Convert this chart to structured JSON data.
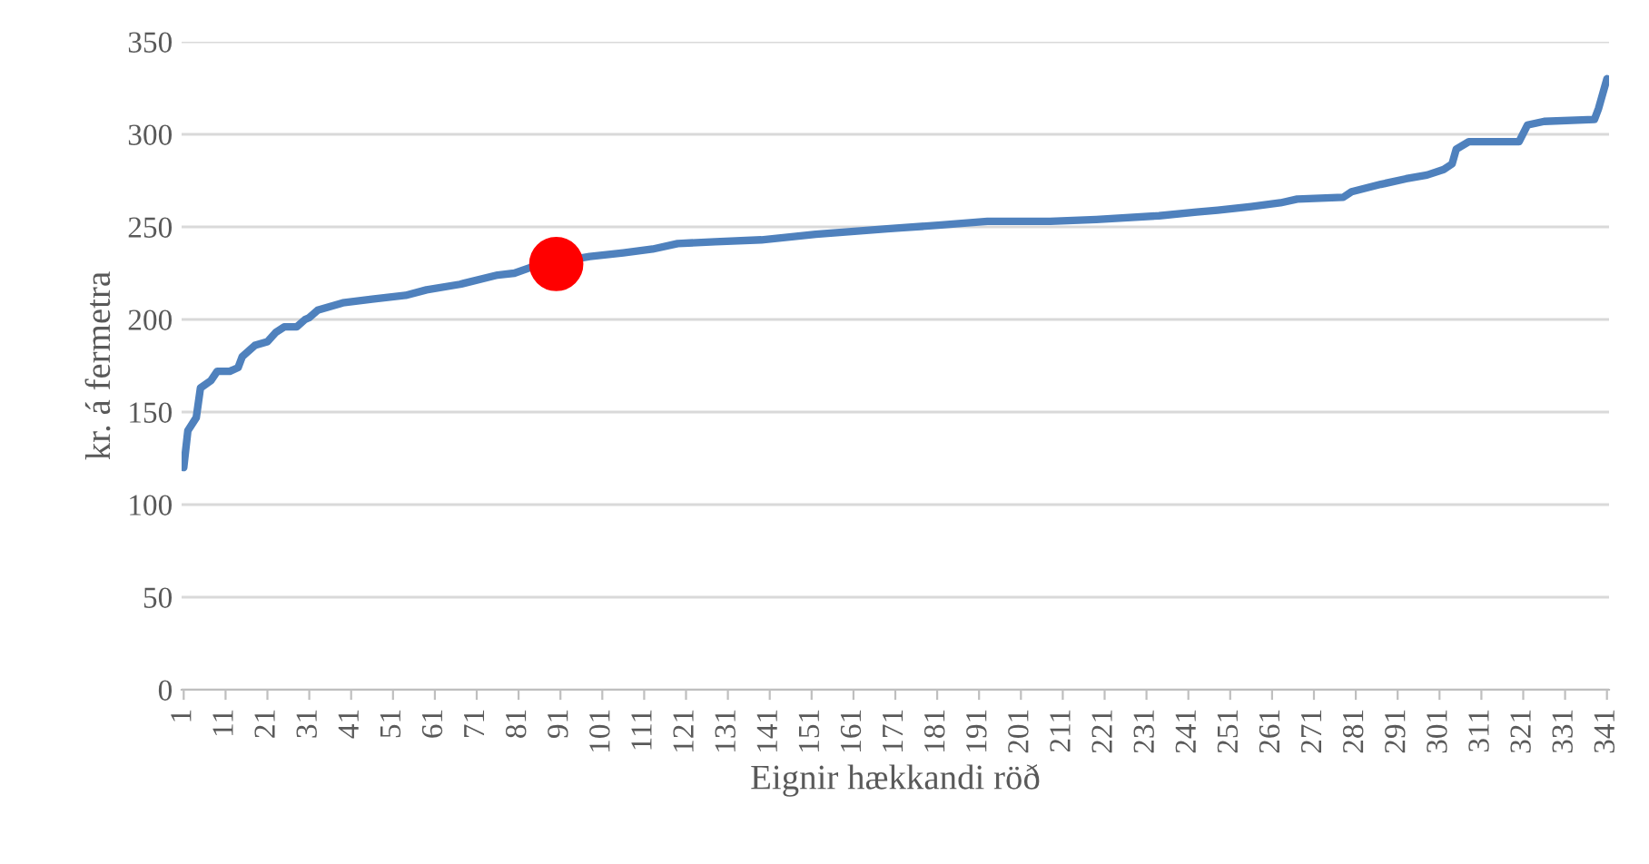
{
  "chart_data": {
    "type": "line",
    "xlabel": "Eignir hækkandi röð",
    "ylabel": "kr. á fermetra",
    "xlim": [
      0.5,
      341.5
    ],
    "xticks": [
      1,
      11,
      21,
      31,
      41,
      51,
      61,
      71,
      81,
      91,
      101,
      111,
      121,
      131,
      141,
      151,
      161,
      171,
      181,
      191,
      201,
      211,
      221,
      231,
      241,
      251,
      261,
      271,
      281,
      291,
      301,
      311,
      321,
      331,
      341
    ],
    "ylim": [
      0,
      350
    ],
    "yticks": [
      0,
      50,
      100,
      150,
      200,
      250,
      300,
      350
    ],
    "grid": "y",
    "legend": false,
    "marker": "none",
    "series": [
      {
        "color": "#4f81bd",
        "x": [
          1,
          2,
          4,
          5,
          7.5,
          9,
          12,
          14,
          15,
          18,
          21,
          23,
          25,
          28,
          30,
          31,
          33,
          39,
          46,
          54,
          59,
          67,
          76,
          80,
          85,
          98,
          106,
          113,
          119,
          128,
          139,
          152,
          169,
          182,
          193,
          208,
          219,
          234,
          243,
          248,
          256,
          263,
          267,
          278,
          280,
          287,
          293,
          298,
          302,
          304,
          305,
          308,
          320,
          322,
          326,
          338,
          339,
          341
        ],
        "values": [
          120,
          140,
          147,
          163,
          167,
          172,
          172,
          174,
          180,
          186,
          188,
          193,
          196,
          196,
          200,
          201,
          205,
          209,
          211,
          213,
          216,
          219,
          224,
          225,
          229,
          234,
          236,
          238,
          241,
          242,
          243,
          246,
          249,
          251,
          253,
          253,
          254,
          256,
          258,
          259,
          261,
          263,
          265,
          266,
          269,
          273,
          276,
          278,
          281,
          284,
          292,
          296,
          296,
          305,
          307,
          308,
          314,
          330
        ]
      },
      {
        "type": "scatter",
        "marker": "circle",
        "color": "#ff0000",
        "x": [
          90
        ],
        "values": [
          230
        ]
      }
    ]
  }
}
